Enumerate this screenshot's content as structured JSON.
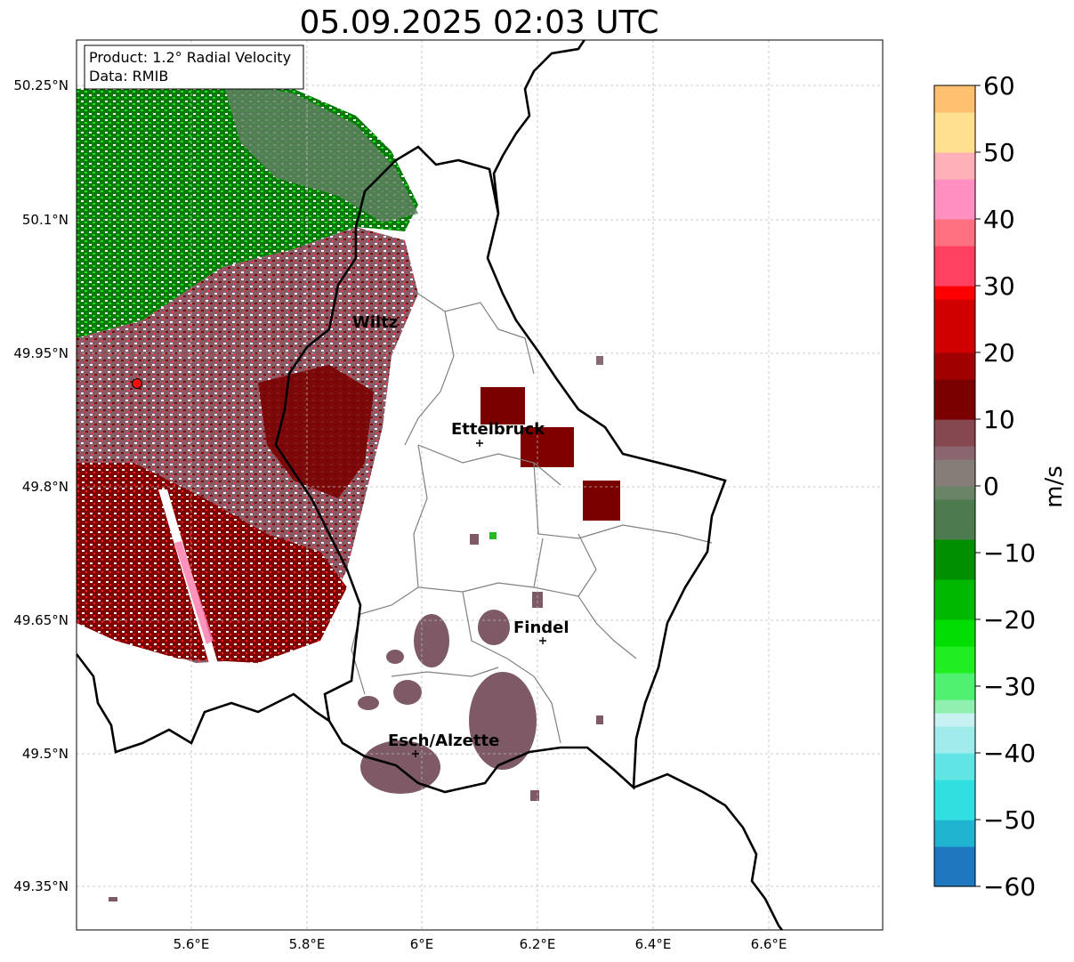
{
  "title": "05.09.2025 02:03 UTC",
  "info_box": {
    "product": "Product: 1.2° Radial Velocity",
    "data": "Data: RMIB"
  },
  "map": {
    "lat_ticks": [
      "50.25°N",
      "50.1°N",
      "49.95°N",
      "49.8°N",
      "49.65°N",
      "49.5°N",
      "49.35°N"
    ],
    "lon_ticks": [
      "5.6°E",
      "5.8°E",
      "6°E",
      "6.2°E",
      "6.4°E",
      "6.6°E"
    ],
    "cities": [
      {
        "name": "Wiltz"
      },
      {
        "name": "Ettelbruck"
      },
      {
        "name": "Findel"
      },
      {
        "name": "Esch/Alzette"
      }
    ],
    "radar_site_icon": "red-dot-icon"
  },
  "colorbar": {
    "label": "m/s",
    "ticks": [
      "60",
      "50",
      "40",
      "30",
      "20",
      "10",
      "0",
      "−10",
      "−20",
      "−30",
      "−40",
      "−50",
      "−60"
    ],
    "min": -60,
    "max": 60
  },
  "colors": {
    "border": "#000000",
    "district": "#808080",
    "grid": "#bbbbbb",
    "approach_dark": "#006400",
    "approach_light": "#00e000",
    "near_zero": "#866b75",
    "recede_dark": "#7a0000",
    "recede_bright": "#ff0000"
  }
}
